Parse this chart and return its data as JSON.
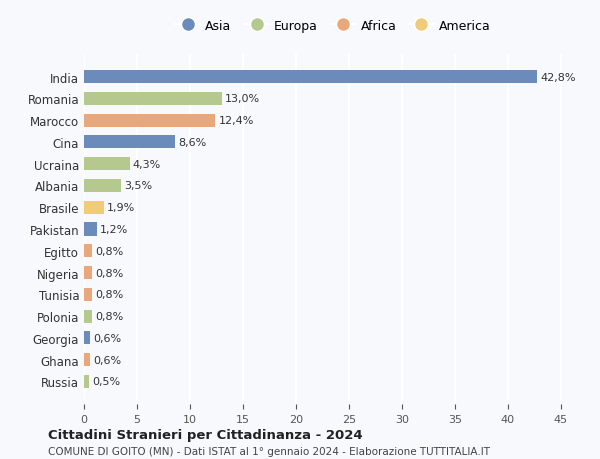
{
  "countries": [
    "India",
    "Romania",
    "Marocco",
    "Cina",
    "Ucraina",
    "Albania",
    "Brasile",
    "Pakistan",
    "Egitto",
    "Nigeria",
    "Tunisia",
    "Polonia",
    "Georgia",
    "Ghana",
    "Russia"
  ],
  "values": [
    42.8,
    13.0,
    12.4,
    8.6,
    4.3,
    3.5,
    1.9,
    1.2,
    0.8,
    0.8,
    0.8,
    0.8,
    0.6,
    0.6,
    0.5
  ],
  "labels": [
    "42,8%",
    "13,0%",
    "12,4%",
    "8,6%",
    "4,3%",
    "3,5%",
    "1,9%",
    "1,2%",
    "0,8%",
    "0,8%",
    "0,8%",
    "0,8%",
    "0,6%",
    "0,6%",
    "0,5%"
  ],
  "colors": [
    "#6b8cba",
    "#b5c98e",
    "#e8a87c",
    "#6b8cba",
    "#b5c98e",
    "#b5c98e",
    "#f0cc7a",
    "#6b8cba",
    "#e8a87c",
    "#e8a87c",
    "#e8a87c",
    "#b5c98e",
    "#6b8cba",
    "#e8a87c",
    "#b5c98e"
  ],
  "legend_labels": [
    "Asia",
    "Europa",
    "Africa",
    "America"
  ],
  "legend_colors": [
    "#6b8cba",
    "#b5c98e",
    "#e8a87c",
    "#f0cc7a"
  ],
  "title": "Cittadini Stranieri per Cittadinanza - 2024",
  "subtitle": "COMUNE DI GOITO (MN) - Dati ISTAT al 1° gennaio 2024 - Elaborazione TUTTITALIA.IT",
  "xlim": [
    0,
    47
  ],
  "xticks": [
    0,
    5,
    10,
    15,
    20,
    25,
    30,
    35,
    40,
    45
  ],
  "background_color": "#f7f9fc",
  "grid_color": "#ffffff",
  "bar_height": 0.6
}
